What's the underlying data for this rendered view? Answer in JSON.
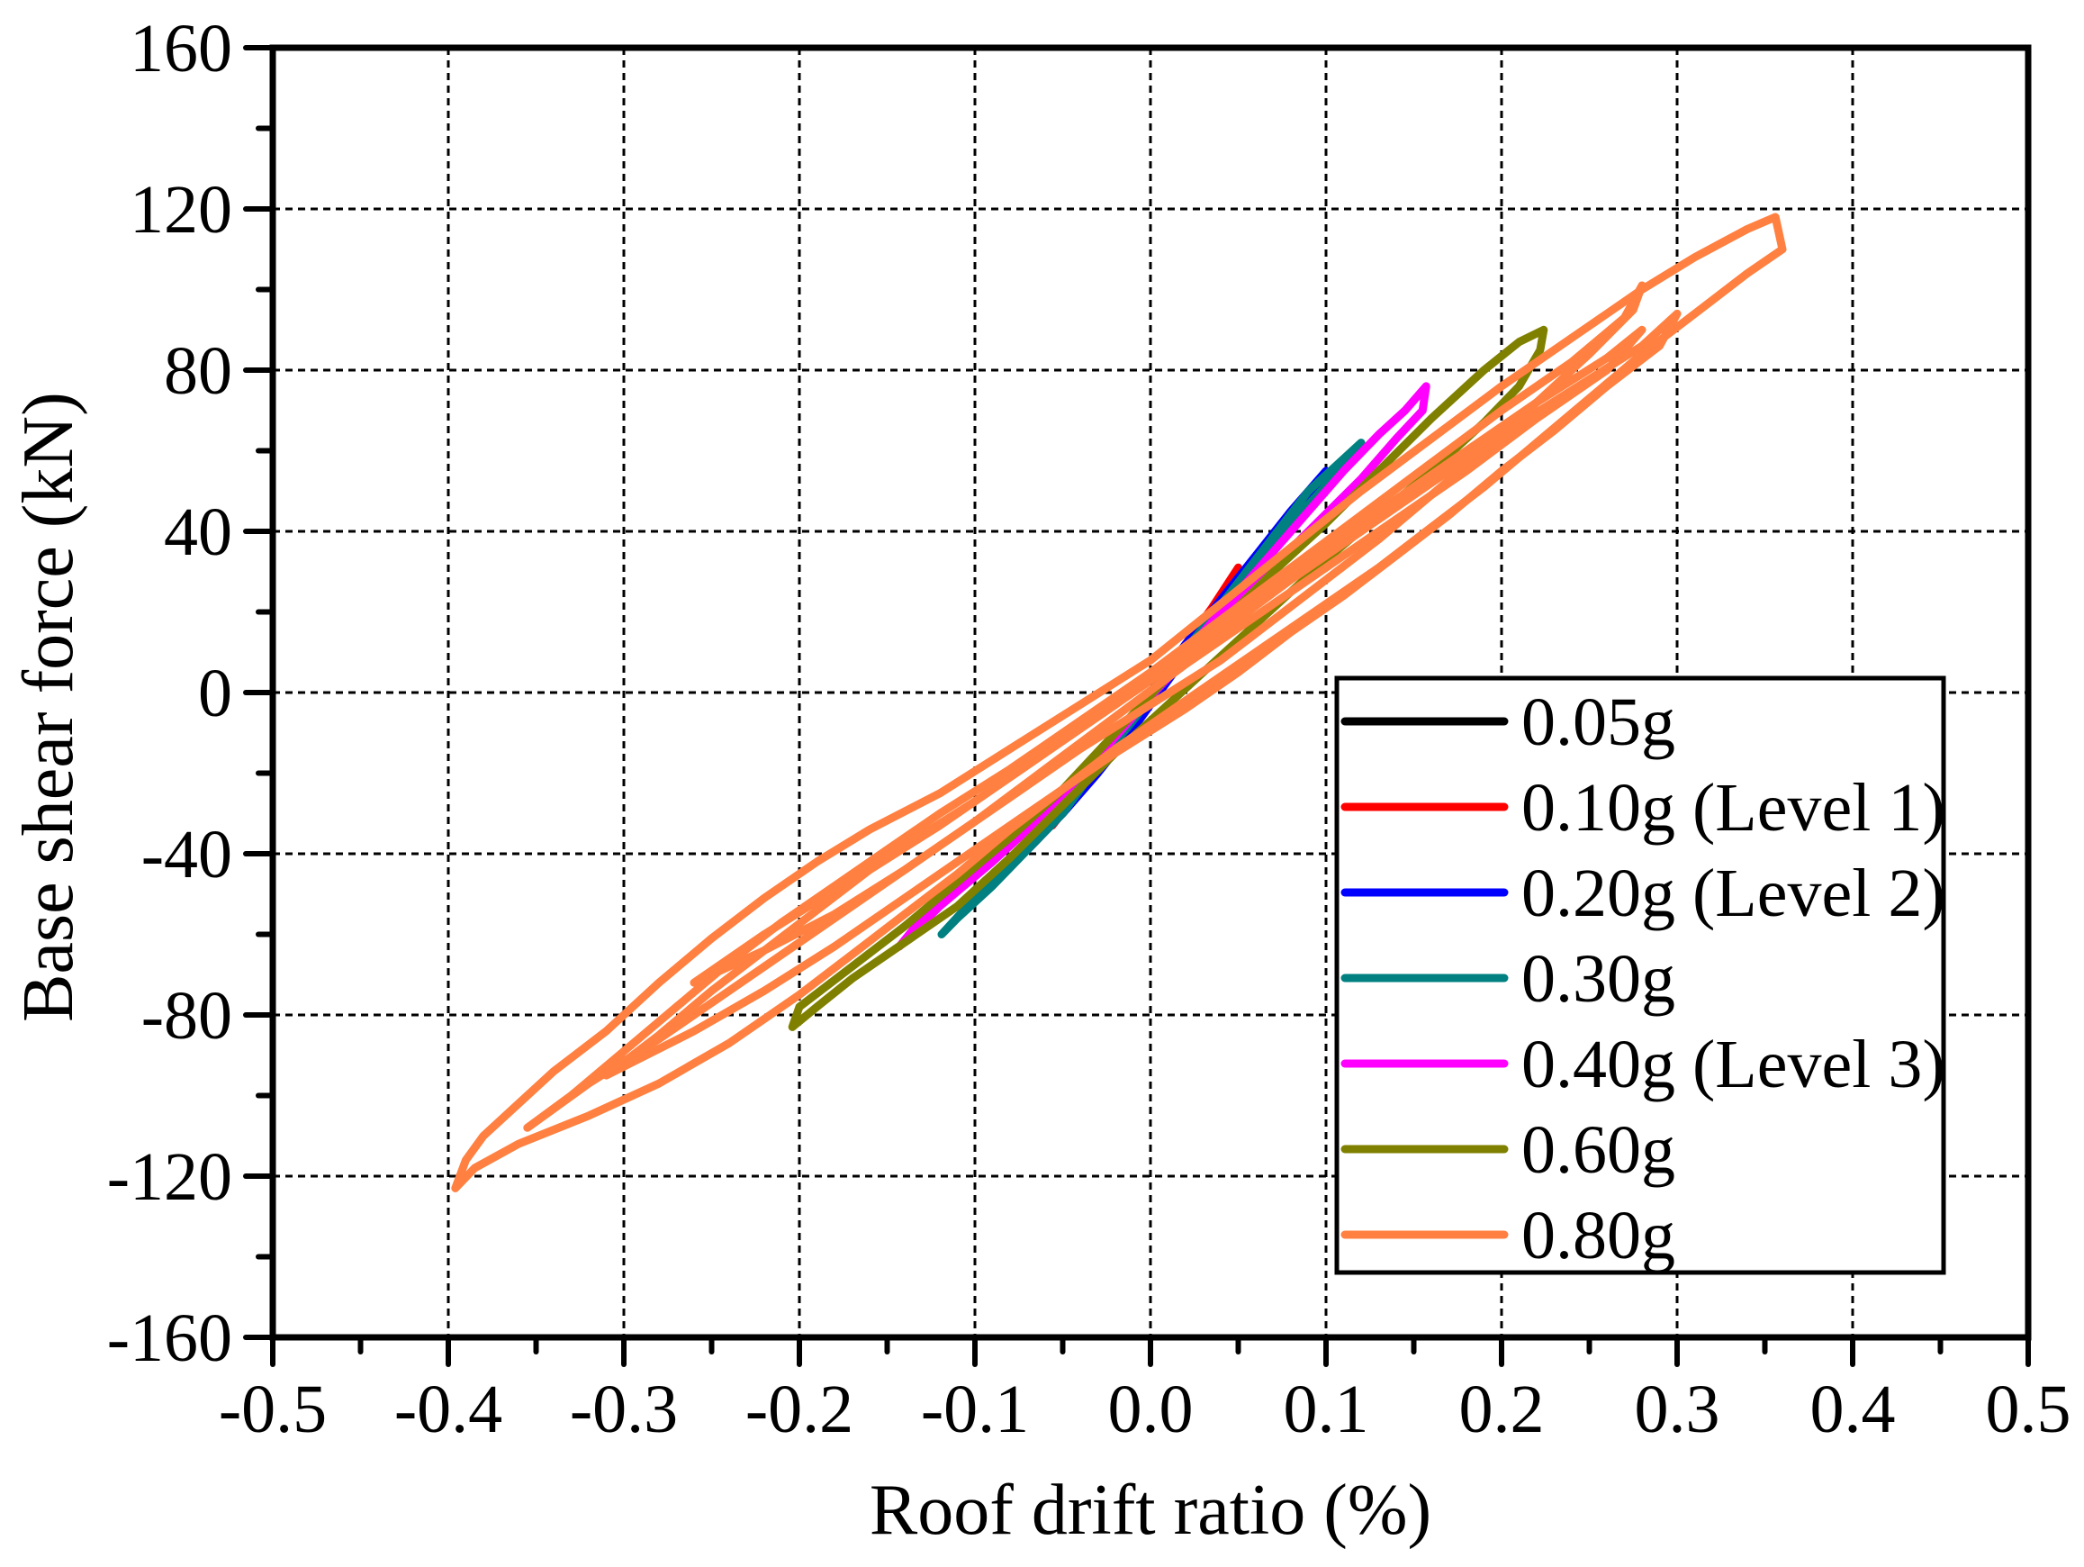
{
  "chart_data": {
    "type": "line",
    "title": "",
    "xlabel": "Roof drift ratio (%)",
    "ylabel": "Base shear force (kN)",
    "xlim": [
      -0.5,
      0.5
    ],
    "ylim": [
      -160,
      160
    ],
    "x_ticks": [
      -0.5,
      -0.4,
      -0.3,
      -0.2,
      -0.1,
      0.0,
      0.1,
      0.2,
      0.3,
      0.4,
      0.5
    ],
    "x_tick_labels": [
      "-0.5",
      "-0.4",
      "-0.3",
      "-0.2",
      "-0.1",
      "0.0",
      "0.1",
      "0.2",
      "0.3",
      "0.4",
      "0.5"
    ],
    "y_ticks": [
      -160,
      -120,
      -80,
      -40,
      0,
      40,
      80,
      120,
      160
    ],
    "y_tick_labels": [
      "-160",
      "-120",
      "-80",
      "-40",
      "0",
      "40",
      "80",
      "120",
      "160"
    ],
    "grid": true,
    "grid_style": "dashed",
    "legend_position": "lower right (inside)",
    "series": [
      {
        "name": "0.05g",
        "color": "#000000",
        "peak_pos": [
          0.02,
          12
        ],
        "peak_neg": [
          -0.02,
          -12
        ],
        "points": [
          [
            -0.02,
            -12
          ],
          [
            -0.01,
            -6
          ],
          [
            0.0,
            0
          ],
          [
            0.01,
            6
          ],
          [
            0.02,
            12
          ],
          [
            0.01,
            5
          ],
          [
            0.0,
            -1
          ],
          [
            -0.01,
            -7
          ],
          [
            -0.02,
            -12
          ]
        ]
      },
      {
        "name": "0.10g (Level 1)",
        "color": "#ff0000",
        "peak_pos": [
          0.05,
          31
        ],
        "peak_neg": [
          -0.056,
          -33
        ],
        "points": [
          [
            -0.056,
            -33
          ],
          [
            -0.04,
            -24
          ],
          [
            -0.02,
            -12
          ],
          [
            0.0,
            0
          ],
          [
            0.02,
            12
          ],
          [
            0.035,
            21
          ],
          [
            0.05,
            31
          ],
          [
            0.045,
            27
          ],
          [
            0.03,
            17
          ],
          [
            0.01,
            5
          ],
          [
            -0.01,
            -7
          ],
          [
            -0.03,
            -19
          ],
          [
            -0.045,
            -27
          ],
          [
            -0.056,
            -33
          ]
        ]
      },
      {
        "name": "0.20g (Level 2)",
        "color": "#0000ff",
        "peak_pos": [
          0.1,
          55
        ],
        "peak_neg": [
          -0.1,
          -50
        ],
        "points": [
          [
            -0.1,
            -50
          ],
          [
            -0.08,
            -42
          ],
          [
            -0.06,
            -33
          ],
          [
            -0.04,
            -24
          ],
          [
            -0.02,
            -12
          ],
          [
            0.0,
            0
          ],
          [
            0.02,
            12
          ],
          [
            0.04,
            23
          ],
          [
            0.06,
            34
          ],
          [
            0.08,
            45
          ],
          [
            0.1,
            55
          ],
          [
            0.095,
            50
          ],
          [
            0.07,
            38
          ],
          [
            0.05,
            27
          ],
          [
            0.03,
            15
          ],
          [
            0.01,
            3
          ],
          [
            -0.01,
            -9
          ],
          [
            -0.03,
            -20
          ],
          [
            -0.05,
            -30
          ],
          [
            -0.07,
            -39
          ],
          [
            -0.09,
            -46
          ],
          [
            -0.1,
            -50
          ]
        ]
      },
      {
        "name": "0.30g",
        "color": "#008080",
        "peak_pos": [
          0.12,
          62
        ],
        "peak_neg": [
          -0.119,
          -60
        ],
        "points": [
          [
            -0.119,
            -60
          ],
          [
            -0.11,
            -56
          ],
          [
            -0.09,
            -48
          ],
          [
            -0.07,
            -39
          ],
          [
            -0.05,
            -30
          ],
          [
            -0.03,
            -18
          ],
          [
            0.0,
            0
          ],
          [
            0.03,
            16
          ],
          [
            0.06,
            33
          ],
          [
            0.09,
            50
          ],
          [
            0.12,
            62
          ],
          [
            0.11,
            56
          ],
          [
            0.08,
            42
          ],
          [
            0.05,
            26
          ],
          [
            0.02,
            10
          ],
          [
            -0.01,
            -7
          ],
          [
            -0.04,
            -23
          ],
          [
            -0.07,
            -37
          ],
          [
            -0.1,
            -51
          ],
          [
            -0.119,
            -60
          ]
        ]
      },
      {
        "name": "0.40g (Level 3)",
        "color": "#ff00ff",
        "peak_pos": [
          0.157,
          76
        ],
        "peak_neg": [
          -0.143,
          -63
        ],
        "points": [
          [
            -0.143,
            -63
          ],
          [
            -0.13,
            -56
          ],
          [
            -0.1,
            -45
          ],
          [
            -0.07,
            -33
          ],
          [
            -0.04,
            -20
          ],
          [
            -0.01,
            -6
          ],
          [
            0.02,
            10
          ],
          [
            0.05,
            25
          ],
          [
            0.08,
            40
          ],
          [
            0.11,
            55
          ],
          [
            0.13,
            64
          ],
          [
            0.145,
            70
          ],
          [
            0.157,
            76
          ],
          [
            0.155,
            70
          ],
          [
            0.14,
            63
          ],
          [
            0.12,
            53
          ],
          [
            0.09,
            40
          ],
          [
            0.06,
            27
          ],
          [
            0.03,
            13
          ],
          [
            0.0,
            -1
          ],
          [
            -0.03,
            -16
          ],
          [
            -0.06,
            -30
          ],
          [
            -0.09,
            -42
          ],
          [
            -0.12,
            -53
          ],
          [
            -0.143,
            -63
          ]
        ]
      },
      {
        "name": "0.60g",
        "color": "#808000",
        "peak_pos": [
          0.224,
          90
        ],
        "peak_neg": [
          -0.204,
          -83
        ],
        "points": [
          [
            -0.204,
            -83
          ],
          [
            -0.2,
            -78
          ],
          [
            -0.17,
            -68
          ],
          [
            -0.14,
            -58
          ],
          [
            -0.11,
            -47
          ],
          [
            -0.08,
            -36
          ],
          [
            -0.05,
            -24
          ],
          [
            -0.02,
            -10
          ],
          [
            0.01,
            4
          ],
          [
            0.04,
            17
          ],
          [
            0.07,
            30
          ],
          [
            0.1,
            42
          ],
          [
            0.13,
            55
          ],
          [
            0.16,
            68
          ],
          [
            0.19,
            80
          ],
          [
            0.21,
            87
          ],
          [
            0.224,
            90
          ],
          [
            0.222,
            85
          ],
          [
            0.21,
            76
          ],
          [
            0.19,
            67
          ],
          [
            0.16,
            55
          ],
          [
            0.13,
            44
          ],
          [
            0.1,
            33
          ],
          [
            0.07,
            21
          ],
          [
            0.04,
            9
          ],
          [
            0.01,
            -3
          ],
          [
            -0.02,
            -15
          ],
          [
            -0.05,
            -28
          ],
          [
            -0.08,
            -41
          ],
          [
            -0.11,
            -53
          ],
          [
            -0.14,
            -62
          ],
          [
            -0.17,
            -71
          ],
          [
            -0.19,
            -78
          ],
          [
            -0.204,
            -83
          ]
        ]
      },
      {
        "name": "0.80g",
        "color": "#ff8040",
        "peak_pos": [
          0.356,
          118
        ],
        "peak_neg": [
          -0.396,
          -123
        ],
        "points": [
          [
            -0.396,
            -123
          ],
          [
            -0.39,
            -116
          ],
          [
            -0.38,
            -110
          ],
          [
            -0.36,
            -102
          ],
          [
            -0.34,
            -94
          ],
          [
            -0.31,
            -84
          ],
          [
            -0.28,
            -72
          ],
          [
            -0.25,
            -61
          ],
          [
            -0.22,
            -51
          ],
          [
            -0.19,
            -42
          ],
          [
            -0.16,
            -34
          ],
          [
            -0.12,
            -25
          ],
          [
            -0.08,
            -14
          ],
          [
            -0.04,
            -3
          ],
          [
            0.0,
            8
          ],
          [
            0.04,
            22
          ],
          [
            0.08,
            36
          ],
          [
            0.12,
            50
          ],
          [
            0.16,
            63
          ],
          [
            0.2,
            76
          ],
          [
            0.24,
            88
          ],
          [
            0.28,
            100
          ],
          [
            0.31,
            108
          ],
          [
            0.34,
            115
          ],
          [
            0.356,
            118
          ],
          [
            0.36,
            110
          ],
          [
            0.34,
            104
          ],
          [
            0.31,
            94
          ],
          [
            0.28,
            84
          ],
          [
            0.25,
            73
          ],
          [
            0.22,
            62
          ],
          [
            0.19,
            51
          ],
          [
            0.16,
            41
          ],
          [
            0.13,
            31
          ],
          [
            0.1,
            22
          ],
          [
            0.07,
            13
          ],
          [
            0.04,
            4
          ],
          [
            0.01,
            -5
          ],
          [
            -0.02,
            -14
          ],
          [
            -0.05,
            -24
          ],
          [
            -0.08,
            -34
          ],
          [
            -0.11,
            -45
          ],
          [
            -0.14,
            -55
          ],
          [
            -0.17,
            -65
          ],
          [
            -0.2,
            -75
          ],
          [
            -0.24,
            -87
          ],
          [
            -0.28,
            -97
          ],
          [
            -0.32,
            -105
          ],
          [
            -0.36,
            -112
          ],
          [
            -0.385,
            -118
          ],
          [
            -0.396,
            -123
          ]
        ],
        "inner_loops": [
          [
            [
              -0.355,
              -108
            ],
            [
              -0.33,
              -100
            ],
            [
              -0.3,
              -89
            ],
            [
              -0.27,
              -78
            ],
            [
              -0.24,
              -67
            ],
            [
              -0.21,
              -57
            ],
            [
              -0.18,
              -48
            ],
            [
              -0.15,
              -39
            ],
            [
              -0.12,
              -30
            ],
            [
              -0.08,
              -19
            ],
            [
              -0.04,
              -7
            ],
            [
              0.0,
              5
            ],
            [
              0.04,
              18
            ],
            [
              0.08,
              31
            ],
            [
              0.12,
              44
            ],
            [
              0.16,
              57
            ],
            [
              0.2,
              70
            ],
            [
              0.24,
              82
            ],
            [
              0.27,
              93
            ],
            [
              0.28,
              101
            ],
            [
              0.275,
              95
            ],
            [
              0.25,
              84
            ],
            [
              0.22,
              72
            ],
            [
              0.19,
              60
            ],
            [
              0.16,
              49
            ],
            [
              0.13,
              38
            ],
            [
              0.1,
              28
            ],
            [
              0.07,
              18
            ],
            [
              0.04,
              8
            ],
            [
              0.0,
              -3
            ],
            [
              -0.04,
              -14
            ],
            [
              -0.08,
              -26
            ],
            [
              -0.12,
              -38
            ],
            [
              -0.16,
              -50
            ],
            [
              -0.2,
              -62
            ],
            [
              -0.24,
              -74
            ],
            [
              -0.28,
              -86
            ],
            [
              -0.32,
              -97
            ],
            [
              -0.355,
              -108
            ]
          ],
          [
            [
              -0.31,
              -95
            ],
            [
              -0.28,
              -85
            ],
            [
              -0.25,
              -74
            ],
            [
              -0.22,
              -64
            ],
            [
              -0.19,
              -54
            ],
            [
              -0.16,
              -44
            ],
            [
              -0.12,
              -33
            ],
            [
              -0.08,
              -21
            ],
            [
              -0.04,
              -9
            ],
            [
              0.0,
              3
            ],
            [
              0.04,
              15
            ],
            [
              0.08,
              28
            ],
            [
              0.12,
              40
            ],
            [
              0.16,
              52
            ],
            [
              0.2,
              64
            ],
            [
              0.24,
              75
            ],
            [
              0.28,
              86
            ],
            [
              0.3,
              94
            ],
            [
              0.29,
              86
            ],
            [
              0.26,
              76
            ],
            [
              0.23,
              65
            ],
            [
              0.2,
              55
            ],
            [
              0.17,
              44
            ],
            [
              0.14,
              34
            ],
            [
              0.11,
              24
            ],
            [
              0.08,
              15
            ],
            [
              0.05,
              5
            ],
            [
              0.02,
              -4
            ],
            [
              -0.02,
              -15
            ],
            [
              -0.06,
              -27
            ],
            [
              -0.1,
              -39
            ],
            [
              -0.14,
              -51
            ],
            [
              -0.18,
              -63
            ],
            [
              -0.22,
              -74
            ],
            [
              -0.26,
              -84
            ],
            [
              -0.31,
              -95
            ]
          ],
          [
            [
              -0.26,
              -72
            ],
            [
              -0.22,
              -60
            ],
            [
              -0.18,
              -49
            ],
            [
              -0.14,
              -38
            ],
            [
              -0.1,
              -27
            ],
            [
              -0.06,
              -15
            ],
            [
              -0.02,
              -3
            ],
            [
              0.02,
              10
            ],
            [
              0.06,
              23
            ],
            [
              0.1,
              36
            ],
            [
              0.14,
              48
            ],
            [
              0.18,
              60
            ],
            [
              0.22,
              72
            ],
            [
              0.26,
              83
            ],
            [
              0.28,
              90
            ],
            [
              0.26,
              80
            ],
            [
              0.22,
              68
            ],
            [
              0.18,
              55
            ],
            [
              0.14,
              43
            ],
            [
              0.1,
              31
            ],
            [
              0.06,
              19
            ],
            [
              0.02,
              7
            ],
            [
              -0.02,
              -6
            ],
            [
              -0.06,
              -19
            ],
            [
              -0.1,
              -32
            ],
            [
              -0.14,
              -44
            ],
            [
              -0.18,
              -55
            ],
            [
              -0.22,
              -64
            ],
            [
              -0.26,
              -72
            ]
          ]
        ]
      }
    ]
  }
}
